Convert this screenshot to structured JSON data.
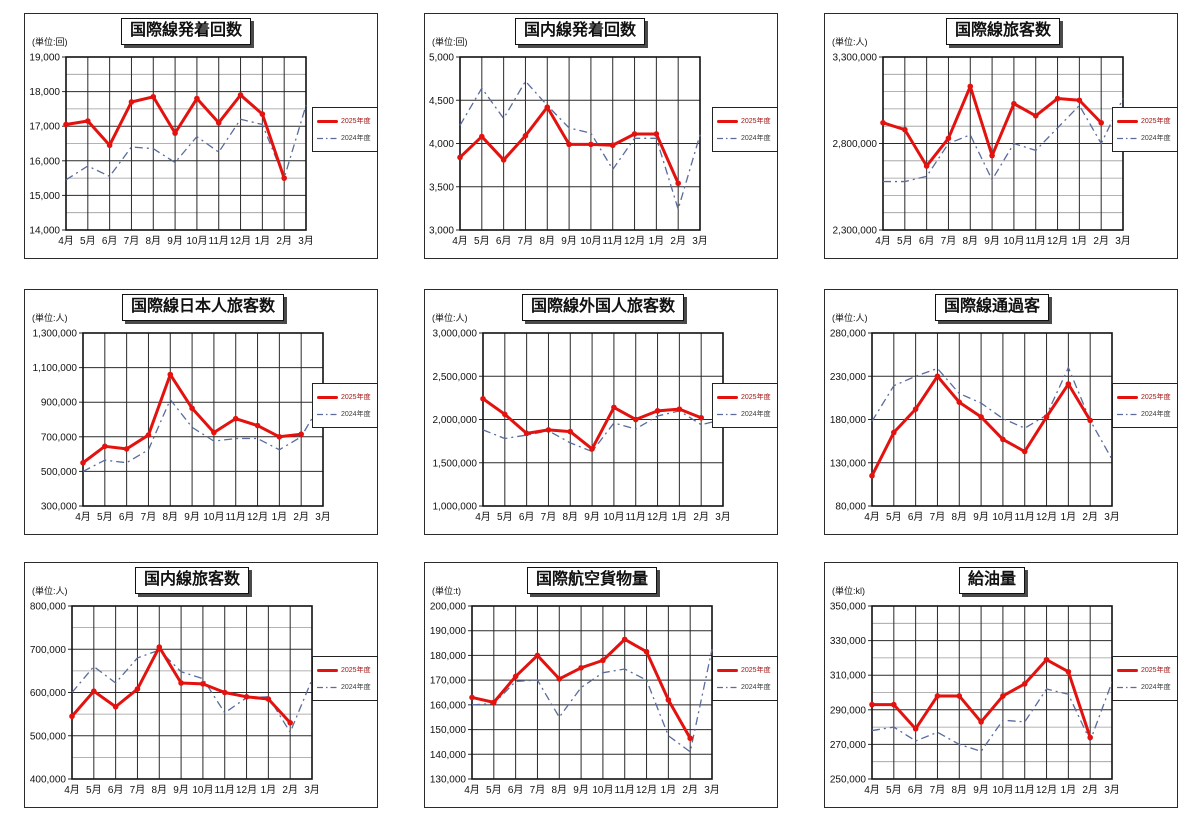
{
  "report": {
    "description_title": "monthly airport traffic statistics charts",
    "fiscal_series": [
      "2025年度",
      "2024年度"
    ]
  },
  "legend": {
    "series1": "2025年度",
    "series2": "2024年度",
    "position": "right"
  },
  "style": {
    "series1_color": "#e3120e",
    "series2_color": "#5a6b9e",
    "grid_major_color": "#2a2a2a",
    "grid_minor_color": "#9a9a9a",
    "axis_border_color": "#111111",
    "background_color": "#ffffff"
  },
  "months": [
    "4月",
    "5月",
    "6月",
    "7月",
    "8月",
    "9月",
    "10月",
    "11月",
    "12月",
    "1月",
    "2月",
    "3月"
  ],
  "chart_data": [
    {
      "type": "line",
      "title": "国際線発着回数",
      "unit_label": "(単位:回)",
      "categories": [
        "4月",
        "5月",
        "6月",
        "7月",
        "8月",
        "9月",
        "10月",
        "11月",
        "12月",
        "1月",
        "2月",
        "3月"
      ],
      "ylim": [
        14000,
        19000
      ],
      "ytick_step": 1000,
      "yminor_step": 500,
      "grid": true,
      "legend_position": "right",
      "series": [
        {
          "name": "2025年度",
          "values": [
            17050,
            17150,
            16450,
            17700,
            17850,
            16800,
            17800,
            17100,
            17900,
            17350,
            15500
          ]
        },
        {
          "name": "2024年度",
          "values": [
            15450,
            15850,
            15550,
            16400,
            16350,
            15950,
            16700,
            16250,
            17200,
            17050,
            15500,
            17600
          ]
        }
      ]
    },
    {
      "type": "line",
      "title": "国内線発着回数",
      "unit_label": "(単位:回)",
      "categories": [
        "4月",
        "5月",
        "6月",
        "7月",
        "8月",
        "9月",
        "10月",
        "11月",
        "12月",
        "1月",
        "2月",
        "3月"
      ],
      "ylim": [
        3000,
        5000
      ],
      "ytick_step": 500,
      "yminor_step": null,
      "grid": true,
      "legend_position": "right",
      "series": [
        {
          "name": "2025年度",
          "values": [
            3840,
            4080,
            3810,
            4090,
            4420,
            3990,
            3990,
            3980,
            4110,
            4110,
            3540
          ]
        },
        {
          "name": "2024年度",
          "values": [
            4210,
            4640,
            4290,
            4720,
            4440,
            4180,
            4120,
            3700,
            4060,
            4060,
            3240,
            4100
          ]
        }
      ]
    },
    {
      "type": "line",
      "title": "国際線旅客数",
      "unit_label": "(単位:人)",
      "categories": [
        "4月",
        "5月",
        "6月",
        "7月",
        "8月",
        "9月",
        "10月",
        "11月",
        "12月",
        "1月",
        "2月",
        "3月"
      ],
      "ylim": [
        2300000,
        3300000
      ],
      "ytick_step": 500000,
      "yminor_step": 100000,
      "grid": true,
      "legend_position": "right",
      "series": [
        {
          "name": "2025年度",
          "values": [
            2920000,
            2880000,
            2670000,
            2830000,
            3130000,
            2730000,
            3030000,
            2960000,
            3060000,
            3050000,
            2920000
          ]
        },
        {
          "name": "2024年度",
          "values": [
            2580000,
            2580000,
            2610000,
            2800000,
            2850000,
            2590000,
            2800000,
            2760000,
            2890000,
            3020000,
            2800000,
            3060000
          ]
        }
      ]
    },
    {
      "type": "line",
      "title": "国際線日本人旅客数",
      "unit_label": "(単位:人)",
      "categories": [
        "4月",
        "5月",
        "6月",
        "7月",
        "8月",
        "9月",
        "10月",
        "11月",
        "12月",
        "1月",
        "2月",
        "3月"
      ],
      "ylim": [
        300000,
        1300000
      ],
      "ytick_step": 200000,
      "yminor_step": null,
      "grid": true,
      "legend_position": "right",
      "series": [
        {
          "name": "2025年度",
          "values": [
            550000,
            645000,
            630000,
            710000,
            1060000,
            865000,
            725000,
            805000,
            765000,
            700000,
            715000
          ]
        },
        {
          "name": "2024年度",
          "values": [
            500000,
            565000,
            550000,
            625000,
            915000,
            755000,
            675000,
            690000,
            690000,
            625000,
            700000,
            915000
          ]
        }
      ]
    },
    {
      "type": "line",
      "title": "国際線外国人旅客数",
      "unit_label": "(単位:人)",
      "categories": [
        "4月",
        "5月",
        "6月",
        "7月",
        "8月",
        "9月",
        "10月",
        "11月",
        "12月",
        "1月",
        "2月",
        "3月"
      ],
      "ylim": [
        1000000,
        3000000
      ],
      "ytick_step": 500000,
      "yminor_step": null,
      "grid": true,
      "legend_position": "right",
      "series": [
        {
          "name": "2025年度",
          "values": [
            2240000,
            2060000,
            1840000,
            1880000,
            1860000,
            1660000,
            2140000,
            2000000,
            2100000,
            2120000,
            2020000
          ]
        },
        {
          "name": "2024年度",
          "values": [
            1880000,
            1780000,
            1820000,
            1870000,
            1730000,
            1630000,
            1960000,
            1890000,
            2040000,
            2100000,
            1940000,
            2000000
          ]
        }
      ]
    },
    {
      "type": "line",
      "title": "国際線通過客",
      "unit_label": "(単位:人)",
      "categories": [
        "4月",
        "5月",
        "6月",
        "7月",
        "8月",
        "9月",
        "10月",
        "11月",
        "12月",
        "1月",
        "2月",
        "3月"
      ],
      "ylim": [
        80000,
        280000
      ],
      "ytick_step": 50000,
      "yminor_step": null,
      "grid": true,
      "legend_position": "right",
      "series": [
        {
          "name": "2025年度",
          "values": [
            115000,
            165000,
            192000,
            230000,
            200000,
            183000,
            157000,
            143000,
            183000,
            221000,
            179000
          ]
        },
        {
          "name": "2024年度",
          "values": [
            178000,
            219000,
            230000,
            239000,
            210000,
            199000,
            181000,
            170000,
            185000,
            240000,
            179000,
            134000
          ]
        }
      ]
    },
    {
      "type": "line",
      "title": "国内線旅客数",
      "unit_label": "(単位:人)",
      "categories": [
        "4月",
        "5月",
        "6月",
        "7月",
        "8月",
        "9月",
        "10月",
        "11月",
        "12月",
        "1月",
        "2月",
        "3月"
      ],
      "ylim": [
        400000,
        800000
      ],
      "ytick_step": 100000,
      "yminor_step": 50000,
      "grid": true,
      "legend_position": "right",
      "series": [
        {
          "name": "2025年度",
          "values": [
            545000,
            603000,
            567000,
            608000,
            705000,
            622000,
            620000,
            600000,
            590000,
            585000,
            530000
          ]
        },
        {
          "name": "2024年度",
          "values": [
            600000,
            660000,
            622000,
            680000,
            698000,
            648000,
            632000,
            553000,
            588000,
            590000,
            508000,
            630000
          ]
        }
      ]
    },
    {
      "type": "line",
      "title": "国際航空貨物量",
      "unit_label": "(単位:t)",
      "categories": [
        "4月",
        "5月",
        "6月",
        "7月",
        "8月",
        "9月",
        "10月",
        "11月",
        "12月",
        "1月",
        "2月",
        "3月"
      ],
      "ylim": [
        130000,
        200000
      ],
      "ytick_step": 10000,
      "yminor_step": null,
      "grid": true,
      "legend_position": "right",
      "series": [
        {
          "name": "2025年度",
          "values": [
            163000,
            161000,
            171500,
            180000,
            170500,
            175000,
            178000,
            186500,
            181500,
            162000,
            146500
          ]
        },
        {
          "name": "2024年度",
          "values": [
            160000,
            160500,
            169500,
            170000,
            155000,
            167000,
            173000,
            174500,
            170000,
            147500,
            141000,
            182500
          ]
        }
      ]
    },
    {
      "type": "line",
      "title": "給油量",
      "unit_label": "(単位:kl)",
      "categories": [
        "4月",
        "5月",
        "6月",
        "7月",
        "8月",
        "9月",
        "10月",
        "11月",
        "12月",
        "1月",
        "2月",
        "3月"
      ],
      "ylim": [
        250000,
        350000
      ],
      "ytick_step": 20000,
      "yminor_step": 10000,
      "grid": true,
      "legend_position": "right",
      "series": [
        {
          "name": "2025年度",
          "values": [
            293000,
            293000,
            279000,
            298000,
            298000,
            283000,
            298000,
            305000,
            319000,
            312000,
            274000
          ]
        },
        {
          "name": "2024年度",
          "values": [
            278000,
            280000,
            272000,
            277000,
            270000,
            266000,
            284000,
            283000,
            302000,
            299000,
            272000,
            306000
          ]
        }
      ]
    }
  ],
  "layout": {
    "panel_lefts": [
      24,
      424,
      824
    ],
    "panel_tops": [
      13,
      289,
      562
    ]
  }
}
